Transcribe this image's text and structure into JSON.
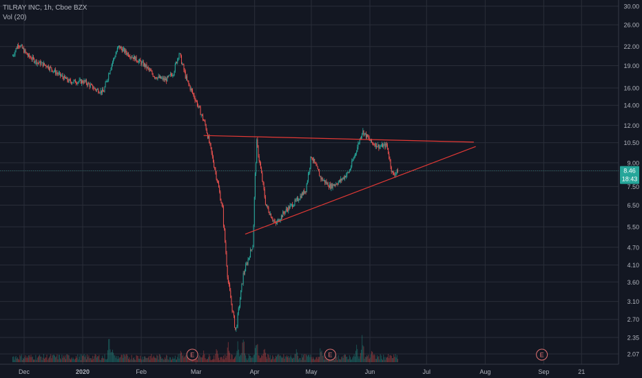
{
  "header": {
    "title": "TILRAY INC, 1h, Cboe BZX",
    "indicator": "Vol (20)"
  },
  "colors": {
    "background": "#131722",
    "grid": "#2a2e39",
    "up": "#26a69a",
    "down": "#ef5350",
    "trendline": "#e53935",
    "price_tag": "#26a69a",
    "earnings": "#e57373"
  },
  "chart_data": {
    "type": "candlestick",
    "y_scale": "log",
    "y_ticks": [
      "30.00",
      "26.00",
      "22.00",
      "19.00",
      "16.00",
      "14.00",
      "12.00",
      "10.50",
      "9.00",
      "8.46",
      "7.50",
      "6.50",
      "5.50",
      "4.70",
      "4.10",
      "3.60",
      "3.10",
      "2.70",
      "2.35",
      "2.07"
    ],
    "x_ticks": [
      "Dec",
      "2020",
      "Feb",
      "Mar",
      "Apr",
      "May",
      "Jun",
      "Jul",
      "Aug",
      "Sep",
      "21"
    ],
    "last_price": "8.46",
    "countdown": "18:43",
    "earnings_markers": [
      "E",
      "E",
      "E"
    ],
    "price_path": [
      [
        "2019-11-25",
        20.5
      ],
      [
        "2019-11-28",
        22.5
      ],
      [
        "2019-12-03",
        20.5
      ],
      [
        "2019-12-08",
        19.5
      ],
      [
        "2019-12-13",
        19.0
      ],
      [
        "2019-12-18",
        18.0
      ],
      [
        "2019-12-25",
        16.8
      ],
      [
        "2020-01-02",
        16.8
      ],
      [
        "2020-01-08",
        15.8
      ],
      [
        "2020-01-12",
        15.5
      ],
      [
        "2020-01-16",
        19.0
      ],
      [
        "2020-01-20",
        22.0
      ],
      [
        "2020-01-24",
        21.0
      ],
      [
        "2020-01-29",
        20.0
      ],
      [
        "2020-02-03",
        19.0
      ],
      [
        "2020-02-08",
        17.5
      ],
      [
        "2020-02-14",
        17.0
      ],
      [
        "2020-02-18",
        18.0
      ],
      [
        "2020-02-21",
        21.0
      ],
      [
        "2020-02-25",
        17.0
      ],
      [
        "2020-03-01",
        14.5
      ],
      [
        "2020-03-06",
        12.0
      ],
      [
        "2020-03-12",
        8.0
      ],
      [
        "2020-03-15",
        6.3
      ],
      [
        "2020-03-18",
        3.6
      ],
      [
        "2020-03-22",
        2.45
      ],
      [
        "2020-03-26",
        3.8
      ],
      [
        "2020-03-31",
        4.8
      ],
      [
        "2020-04-02",
        10.6
      ],
      [
        "2020-04-07",
        6.5
      ],
      [
        "2020-04-12",
        5.6
      ],
      [
        "2020-04-17",
        6.2
      ],
      [
        "2020-04-23",
        6.7
      ],
      [
        "2020-04-28",
        7.3
      ],
      [
        "2020-05-01",
        9.5
      ],
      [
        "2020-05-06",
        8.0
      ],
      [
        "2020-05-11",
        7.5
      ],
      [
        "2020-05-16",
        7.8
      ],
      [
        "2020-05-21",
        8.4
      ],
      [
        "2020-05-25",
        10.0
      ],
      [
        "2020-05-28",
        11.5
      ],
      [
        "2020-06-02",
        10.5
      ],
      [
        "2020-06-06",
        10.2
      ],
      [
        "2020-06-10",
        10.3
      ],
      [
        "2020-06-13",
        8.2
      ],
      [
        "2020-06-16",
        8.46
      ]
    ],
    "volume_spikes": [
      [
        "2020-01-15",
        1.0
      ],
      [
        "2020-01-17",
        0.55
      ],
      [
        "2020-02-22",
        0.45
      ],
      [
        "2020-03-05",
        0.4
      ],
      [
        "2020-03-12",
        0.55
      ],
      [
        "2020-03-18",
        0.7
      ],
      [
        "2020-03-23",
        0.75
      ],
      [
        "2020-03-26",
        1.0
      ],
      [
        "2020-04-02",
        0.95
      ],
      [
        "2020-04-06",
        0.6
      ],
      [
        "2020-04-23",
        0.5
      ],
      [
        "2020-05-06",
        0.55
      ],
      [
        "2020-05-25",
        0.6
      ],
      [
        "2020-05-28",
        1.0
      ],
      [
        "2020-06-02",
        0.5
      ]
    ],
    "trendlines": [
      {
        "from": [
          "2020-03-05",
          11.1
        ],
        "to": [
          "2020-07-26",
          10.55
        ]
      },
      {
        "from": [
          "2020-03-27",
          5.2
        ],
        "to": [
          "2020-07-27",
          10.2
        ]
      }
    ]
  }
}
